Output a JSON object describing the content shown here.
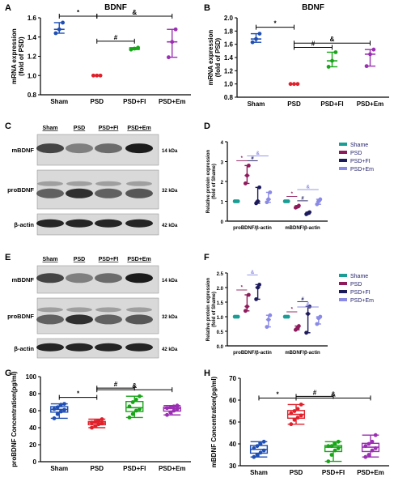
{
  "panels": {
    "A": "A",
    "B": "B",
    "C": "C",
    "D": "D",
    "E": "E",
    "F": "F",
    "G": "G",
    "H": "H"
  },
  "chart_data": [
    {
      "id": "A",
      "type": "boxplot",
      "title": "BDNF",
      "ylabel": "mRNA expression\n(fold of PSD)",
      "ylim": [
        0.8,
        1.6
      ],
      "yticks": [
        0.8,
        1.0,
        1.2,
        1.4,
        1.6
      ],
      "categories": [
        "Sham",
        "PSD",
        "PSD+FI",
        "PSD+Em"
      ],
      "colors": [
        "#1f4fb4",
        "#e0202a",
        "#18a518",
        "#9b2fb3"
      ],
      "markers": [
        "circle",
        "circle",
        "circle",
        "circle"
      ],
      "points": [
        [
          1.44,
          1.48,
          1.55
        ],
        [
          1.0,
          1.0,
          1.0
        ],
        [
          1.27,
          1.28,
          1.29
        ],
        [
          1.19,
          1.35,
          1.48
        ]
      ],
      "sig": [
        {
          "from": 0,
          "to": 1,
          "sym": "*"
        },
        {
          "from": 1,
          "to": 3,
          "sym": "&"
        },
        {
          "from": 1,
          "to": 2,
          "sym": "#"
        }
      ]
    },
    {
      "id": "B",
      "type": "boxplot",
      "title": "BDNF",
      "ylabel": "mRNA expression\n(fold of PSD)",
      "ylim": [
        0.8,
        2.0
      ],
      "yticks": [
        0.8,
        1.0,
        1.2,
        1.4,
        1.6,
        1.8,
        2.0
      ],
      "categories": [
        "Sham",
        "PSD",
        "PSD+FI",
        "PSD+Em"
      ],
      "colors": [
        "#1f4fb4",
        "#e0202a",
        "#18a518",
        "#9b2fb3"
      ],
      "markers": [
        "circle",
        "circle",
        "circle",
        "circle"
      ],
      "points": [
        [
          1.63,
          1.68,
          1.76
        ],
        [
          1.0,
          1.0,
          1.0
        ],
        [
          1.26,
          1.35,
          1.48
        ],
        [
          1.27,
          1.45,
          1.52
        ]
      ],
      "sig": [
        {
          "from": 0,
          "to": 1,
          "sym": "*"
        },
        {
          "from": 1,
          "to": 3,
          "sym": "&"
        },
        {
          "from": 1,
          "to": 2,
          "sym": "#"
        }
      ]
    },
    {
      "id": "D",
      "type": "boxplot",
      "ylabel": "Relative protein expression\n(fold of Shame)",
      "ylim": [
        0,
        4
      ],
      "yticks": [
        0,
        1,
        2,
        3,
        4
      ],
      "groups": [
        "proBDNF/β-actin",
        "mBDNF/β-actin"
      ],
      "legend": [
        "Shame",
        "PSD",
        "PSD+FI",
        "PSD+Em"
      ],
      "colors": [
        "#1a9d94",
        "#8e1a5c",
        "#1d1a5c",
        "#8a8ae6"
      ],
      "points": [
        [
          [
            1.0,
            1.0,
            1.0
          ],
          [
            1.9,
            2.3,
            2.8
          ],
          [
            0.9,
            1.0,
            1.7
          ],
          [
            0.95,
            1.1,
            1.45
          ]
        ],
        [
          [
            1.0,
            1.0,
            1.0
          ],
          [
            0.68,
            0.72,
            0.78
          ],
          [
            0.35,
            0.4,
            0.45
          ],
          [
            0.85,
            1.0,
            1.1
          ]
        ]
      ],
      "sig": [
        {
          "g": 0,
          "from": 0,
          "to": 1,
          "sym": "*"
        },
        {
          "g": 0,
          "from": 1,
          "to": 2,
          "sym": "#"
        },
        {
          "g": 0,
          "from": 1,
          "to": 3,
          "sym": "&"
        },
        {
          "g": 1,
          "from": 0,
          "to": 1,
          "sym": "*"
        },
        {
          "g": 1,
          "from": 1,
          "to": 2,
          "sym": "#"
        },
        {
          "g": 1,
          "from": 1,
          "to": 3,
          "sym": "&"
        }
      ]
    },
    {
      "id": "F",
      "type": "boxplot",
      "ylabel": "Relative protein expression\n(fold of Shame)",
      "ylim": [
        0,
        2.5
      ],
      "yticks": [
        0.0,
        0.5,
        1.0,
        1.5,
        2.0,
        2.5
      ],
      "groups": [
        "proBDNF/β-actin",
        "mBDNF/β-actin"
      ],
      "legend": [
        "Shame",
        "PSD",
        "PSD+FI",
        "PSD+Em"
      ],
      "colors": [
        "#1a9d94",
        "#8e1a5c",
        "#1d1a5c",
        "#8a8ae6"
      ],
      "points": [
        [
          [
            1.0,
            1.0,
            1.0
          ],
          [
            1.2,
            1.35,
            1.75
          ],
          [
            1.6,
            2.0,
            2.1
          ],
          [
            0.65,
            0.9,
            1.05
          ]
        ],
        [
          [
            1.0,
            1.0,
            1.0
          ],
          [
            0.55,
            0.6,
            0.68
          ],
          [
            0.45,
            1.1,
            1.35
          ],
          [
            0.75,
            0.95,
            1.0
          ]
        ]
      ],
      "sig": [
        {
          "g": 0,
          "from": 0,
          "to": 1,
          "sym": "*"
        },
        {
          "g": 0,
          "from": 1,
          "to": 2,
          "sym": "&"
        },
        {
          "g": 1,
          "from": 0,
          "to": 1,
          "sym": "*"
        },
        {
          "g": 1,
          "from": 1,
          "to": 2,
          "sym": "#"
        },
        {
          "g": 1,
          "from": 1,
          "to": 3,
          "sym": "&"
        }
      ]
    },
    {
      "id": "G",
      "type": "boxplot",
      "ylabel": "proBDNF Concentration(pg/ml)",
      "ylim": [
        0,
        100
      ],
      "yticks": [
        0,
        20,
        40,
        60,
        80,
        100
      ],
      "categories": [
        "Sham",
        "PSD",
        "PSD+FI",
        "PSD+Em"
      ],
      "colors": [
        "#1f4fb4",
        "#e0202a",
        "#18a518",
        "#9b2fb3"
      ],
      "points": [
        [
          51,
          56,
          59,
          61,
          62,
          64,
          67,
          68
        ],
        [
          40,
          42,
          44,
          45,
          46,
          47,
          48,
          50
        ],
        [
          52,
          56,
          60,
          62,
          65,
          70,
          73,
          77
        ],
        [
          55,
          58,
          60,
          62,
          63,
          64,
          65,
          66
        ]
      ],
      "sig": [
        {
          "from": 0,
          "to": 1,
          "sym": "*"
        },
        {
          "from": 1,
          "to": 3,
          "sym": "&"
        },
        {
          "from": 1,
          "to": 2,
          "sym": "#"
        }
      ]
    },
    {
      "id": "H",
      "type": "boxplot",
      "ylabel": "mBDNF Concentration(pg/ml)",
      "ylim": [
        30,
        70
      ],
      "yticks": [
        30,
        40,
        50,
        60,
        70
      ],
      "categories": [
        "Sham",
        "PSD",
        "PSD+FI",
        "PSD+Em"
      ],
      "colors": [
        "#1f4fb4",
        "#e0202a",
        "#18a518",
        "#9b2fb3"
      ],
      "points": [
        [
          34,
          35,
          36,
          37,
          38,
          39,
          40,
          41
        ],
        [
          49,
          51,
          52,
          53,
          54,
          55,
          56,
          58
        ],
        [
          32,
          35,
          37,
          38,
          39,
          39,
          40,
          41
        ],
        [
          34,
          35,
          37,
          38,
          39,
          40,
          41,
          44
        ]
      ],
      "sig": [
        {
          "from": 0,
          "to": 1,
          "sym": "*"
        },
        {
          "from": 1,
          "to": 3,
          "sym": "&"
        },
        {
          "from": 1,
          "to": 2,
          "sym": "#"
        }
      ]
    }
  ],
  "blots": [
    {
      "id": "C",
      "headers": [
        "Sham",
        "PSD",
        "PSD+FI",
        "PSD+Em"
      ],
      "rows": [
        {
          "label": "mBDNF",
          "kda": "14 kDa"
        },
        {
          "label": "proBDNF",
          "kda": "32 kDa"
        },
        {
          "label": "β-actin",
          "kda": "42 kDa"
        }
      ]
    },
    {
      "id": "E",
      "headers": [
        "Sham",
        "PSD",
        "PSD+FI",
        "PSD+Em"
      ],
      "rows": [
        {
          "label": "mBDNF",
          "kda": "14 kDa"
        },
        {
          "label": "proBDNF",
          "kda": "32 kDa"
        },
        {
          "label": "β-actin",
          "kda": "42 kDa"
        }
      ]
    }
  ]
}
